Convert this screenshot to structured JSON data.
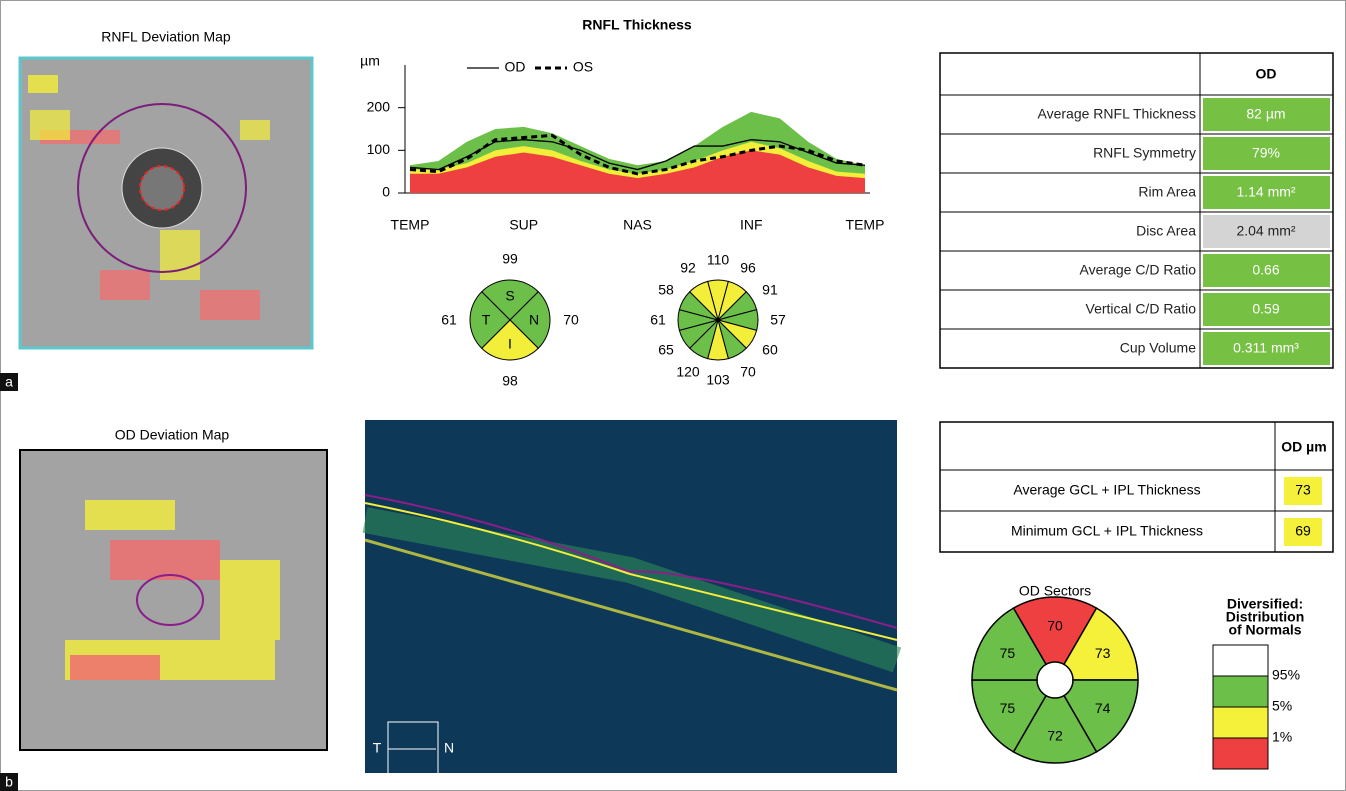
{
  "panel_a": {
    "label": "a",
    "deviation_map": {
      "title": "RNFL Deviation Map"
    },
    "rnfl_chart": {
      "type": "line",
      "title": "RNFL Thickness",
      "y_unit": "µm",
      "categories": [
        "TEMP",
        null,
        null,
        null,
        "SUP",
        null,
        null,
        null,
        "NAS",
        null,
        null,
        null,
        "INF",
        null,
        null,
        null,
        "TEMP"
      ],
      "ylim": [
        0,
        300
      ],
      "yticks": [
        0,
        100,
        200
      ],
      "bands": [
        {
          "color": "#6cc04a",
          "values": [
            65,
            75,
            120,
            150,
            155,
            140,
            110,
            80,
            65,
            75,
            110,
            155,
            190,
            175,
            120,
            80,
            65
          ]
        },
        {
          "color": "#f2ee3a",
          "values": [
            55,
            55,
            70,
            100,
            110,
            100,
            75,
            55,
            45,
            55,
            75,
            100,
            120,
            105,
            75,
            50,
            45
          ]
        },
        {
          "color": "#ee4040",
          "values": [
            45,
            45,
            60,
            85,
            95,
            85,
            65,
            45,
            35,
            45,
            60,
            85,
            100,
            90,
            60,
            40,
            35
          ]
        }
      ],
      "series": [
        {
          "name": "OD",
          "color": "#000000",
          "dash": false,
          "values": [
            60,
            55,
            85,
            120,
            125,
            120,
            100,
            70,
            55,
            75,
            110,
            110,
            125,
            120,
            95,
            70,
            65
          ]
        },
        {
          "name": "OS",
          "color": "#000000",
          "dash": true,
          "values": [
            55,
            50,
            80,
            125,
            130,
            135,
            90,
            60,
            45,
            55,
            75,
            85,
            100,
            110,
            100,
            75,
            65
          ]
        }
      ]
    },
    "quadrants": [
      {
        "letter": "S",
        "value": 99,
        "color": "#6cc04a"
      },
      {
        "letter": "N",
        "value": 70,
        "color": "#6cc04a"
      },
      {
        "letter": "I",
        "value": 98,
        "color": "#f2ee3a"
      },
      {
        "letter": "T",
        "value": 61,
        "color": "#6cc04a"
      }
    ],
    "clock_hours": [
      {
        "value": 110,
        "color": "#f2ee3a"
      },
      {
        "value": 96,
        "color": "#f2ee3a"
      },
      {
        "value": 91,
        "color": "#6cc04a"
      },
      {
        "value": 57,
        "color": "#6cc04a"
      },
      {
        "value": 60,
        "color": "#f2ee3a"
      },
      {
        "value": 70,
        "color": "#6cc04a"
      },
      {
        "value": 103,
        "color": "#f2ee3a"
      },
      {
        "value": 120,
        "color": "#6cc04a"
      },
      {
        "value": 65,
        "color": "#6cc04a"
      },
      {
        "value": 61,
        "color": "#6cc04a"
      },
      {
        "value": 58,
        "color": "#6cc04a"
      },
      {
        "value": 92,
        "color": "#f2ee3a"
      }
    ],
    "table": {
      "header": "OD",
      "rows": [
        {
          "label": "Average RNFL Thickness",
          "value": "82 µm",
          "color": "#76c043"
        },
        {
          "label": "RNFL Symmetry",
          "value": "79%",
          "color": "#76c043"
        },
        {
          "label": "Rim Area",
          "value": "1.14 mm²",
          "color": "#76c043"
        },
        {
          "label": "Disc Area",
          "value": "2.04 mm²",
          "color": "#d4d4d4"
        },
        {
          "label": "Average C/D Ratio",
          "value": "0.66",
          "color": "#76c043"
        },
        {
          "label": "Vertical C/D Ratio",
          "value": "0.59",
          "color": "#76c043"
        },
        {
          "label": "Cup Volume",
          "value": "0.311 mm³",
          "color": "#76c043"
        }
      ]
    }
  },
  "panel_b": {
    "label": "b",
    "deviation_map": {
      "title": "OD Deviation Map"
    },
    "scan": {
      "left": "T",
      "right": "N"
    },
    "table": {
      "header": "OD µm",
      "rows": [
        {
          "label": "Average GCL + IPL Thickness",
          "value": 73,
          "color": "#f5f03a"
        },
        {
          "label": "Minimum GCL + IPL Thickness",
          "value": 69,
          "color": "#f5f03a"
        }
      ]
    },
    "sectors": {
      "title": "OD Sectors",
      "values": [
        {
          "value": 70,
          "color": "#ee4040"
        },
        {
          "value": 73,
          "color": "#f5f03a"
        },
        {
          "value": 74,
          "color": "#6cc04a"
        },
        {
          "value": 72,
          "color": "#6cc04a"
        },
        {
          "value": 75,
          "color": "#6cc04a"
        },
        {
          "value": 75,
          "color": "#6cc04a"
        }
      ]
    },
    "legend": {
      "title": [
        "Diversified:",
        "Distribution",
        "of Normals"
      ],
      "boxes": [
        "#ffffff",
        "#6cc04a",
        "#f5f03a",
        "#ee4040"
      ],
      "labels": [
        "95%",
        "5%",
        "1%"
      ]
    }
  }
}
